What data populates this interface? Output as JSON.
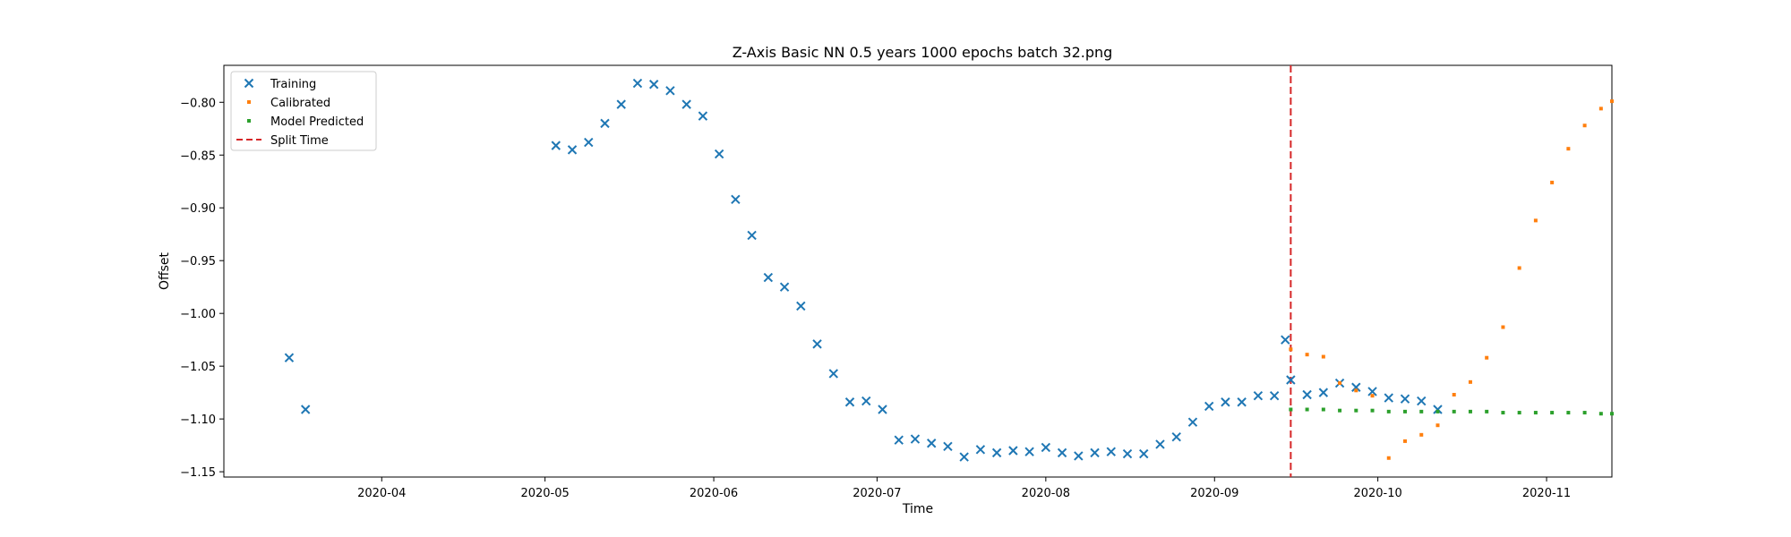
{
  "chart_data": {
    "type": "scatter",
    "title": "Z-Axis Basic NN 0.5 years 1000 epochs batch 32.png",
    "xlabel": "Time",
    "ylabel": "Offset",
    "xlim": [
      "2020-03-03",
      "2020-11-13"
    ],
    "ylim": [
      -1.155,
      -0.765
    ],
    "x_ticks": [
      "2020-04",
      "2020-05",
      "2020-06",
      "2020-07",
      "2020-08",
      "2020-09",
      "2020-10",
      "2020-11"
    ],
    "y_ticks": [
      -0.8,
      -0.85,
      -0.9,
      -0.95,
      -1.0,
      -1.05,
      -1.1,
      -1.15
    ],
    "y_tick_labels": [
      "−0.80",
      "−0.85",
      "−0.90",
      "−0.95",
      "−1.00",
      "−1.05",
      "−1.10",
      "−1.15"
    ],
    "legend_position": "top-left",
    "grid": false,
    "split_time": {
      "name": "Split Time",
      "x": "2020-09-15",
      "color": "#d62728"
    },
    "series": [
      {
        "name": "Training",
        "marker": "x",
        "color": "#1f77b4",
        "points": [
          [
            "2020-03-15",
            -1.042
          ],
          [
            "2020-03-18",
            -1.091
          ],
          [
            "2020-05-03",
            -0.841
          ],
          [
            "2020-05-06",
            -0.845
          ],
          [
            "2020-05-09",
            -0.838
          ],
          [
            "2020-05-12",
            -0.82
          ],
          [
            "2020-05-15",
            -0.802
          ],
          [
            "2020-05-18",
            -0.782
          ],
          [
            "2020-05-21",
            -0.783
          ],
          [
            "2020-05-24",
            -0.789
          ],
          [
            "2020-05-27",
            -0.802
          ],
          [
            "2020-05-30",
            -0.813
          ],
          [
            "2020-06-02",
            -0.849
          ],
          [
            "2020-06-05",
            -0.892
          ],
          [
            "2020-06-08",
            -0.926
          ],
          [
            "2020-06-11",
            -0.966
          ],
          [
            "2020-06-14",
            -0.975
          ],
          [
            "2020-06-17",
            -0.993
          ],
          [
            "2020-06-20",
            -1.029
          ],
          [
            "2020-06-23",
            -1.057
          ],
          [
            "2020-06-26",
            -1.084
          ],
          [
            "2020-06-29",
            -1.083
          ],
          [
            "2020-07-02",
            -1.091
          ],
          [
            "2020-07-05",
            -1.12
          ],
          [
            "2020-07-08",
            -1.119
          ],
          [
            "2020-07-11",
            -1.123
          ],
          [
            "2020-07-14",
            -1.126
          ],
          [
            "2020-07-17",
            -1.136
          ],
          [
            "2020-07-20",
            -1.129
          ],
          [
            "2020-07-23",
            -1.132
          ],
          [
            "2020-07-26",
            -1.13
          ],
          [
            "2020-07-29",
            -1.131
          ],
          [
            "2020-08-01",
            -1.127
          ],
          [
            "2020-08-04",
            -1.132
          ],
          [
            "2020-08-07",
            -1.135
          ],
          [
            "2020-08-10",
            -1.132
          ],
          [
            "2020-08-13",
            -1.131
          ],
          [
            "2020-08-16",
            -1.133
          ],
          [
            "2020-08-19",
            -1.133
          ],
          [
            "2020-08-22",
            -1.124
          ],
          [
            "2020-08-25",
            -1.117
          ],
          [
            "2020-08-28",
            -1.103
          ],
          [
            "2020-08-31",
            -1.088
          ],
          [
            "2020-09-03",
            -1.084
          ],
          [
            "2020-09-06",
            -1.084
          ],
          [
            "2020-09-09",
            -1.078
          ],
          [
            "2020-09-12",
            -1.078
          ],
          [
            "2020-09-15",
            -1.063
          ],
          [
            "2020-09-18",
            -1.077
          ],
          [
            "2020-09-21",
            -1.075
          ],
          [
            "2020-09-24",
            -1.066
          ],
          [
            "2020-09-27",
            -1.07
          ],
          [
            "2020-09-30",
            -1.074
          ],
          [
            "2020-10-03",
            -1.08
          ],
          [
            "2020-10-06",
            -1.081
          ],
          [
            "2020-10-09",
            -1.083
          ],
          [
            "2020-10-12",
            -1.091
          ],
          [
            "2020-09-14",
            -1.025
          ]
        ]
      },
      {
        "name": "Calibrated",
        "marker": "s",
        "color": "#ff7f0e",
        "points": [
          [
            "2020-09-15",
            -1.034
          ],
          [
            "2020-09-18",
            -1.039
          ],
          [
            "2020-09-21",
            -1.041
          ],
          [
            "2020-09-24",
            -1.066
          ],
          [
            "2020-09-27",
            -1.073
          ],
          [
            "2020-09-30",
            -1.078
          ],
          [
            "2020-10-03",
            -1.137
          ],
          [
            "2020-10-06",
            -1.121
          ],
          [
            "2020-10-09",
            -1.115
          ],
          [
            "2020-10-12",
            -1.106
          ],
          [
            "2020-10-15",
            -1.077
          ],
          [
            "2020-10-18",
            -1.065
          ],
          [
            "2020-10-21",
            -1.042
          ],
          [
            "2020-10-24",
            -1.013
          ],
          [
            "2020-10-27",
            -0.957
          ],
          [
            "2020-10-30",
            -0.912
          ],
          [
            "2020-11-02",
            -0.876
          ],
          [
            "2020-11-05",
            -0.844
          ],
          [
            "2020-11-08",
            -0.822
          ],
          [
            "2020-11-11",
            -0.806
          ],
          [
            "2020-11-13",
            -0.799
          ]
        ]
      },
      {
        "name": "Model Predicted",
        "marker": "o",
        "color": "#2ca02c",
        "points": [
          [
            "2020-09-15",
            -1.091
          ],
          [
            "2020-09-18",
            -1.091
          ],
          [
            "2020-09-21",
            -1.091
          ],
          [
            "2020-09-24",
            -1.092
          ],
          [
            "2020-09-27",
            -1.092
          ],
          [
            "2020-09-30",
            -1.092
          ],
          [
            "2020-10-03",
            -1.093
          ],
          [
            "2020-10-06",
            -1.093
          ],
          [
            "2020-10-09",
            -1.093
          ],
          [
            "2020-10-12",
            -1.093
          ],
          [
            "2020-10-15",
            -1.093
          ],
          [
            "2020-10-18",
            -1.093
          ],
          [
            "2020-10-21",
            -1.093
          ],
          [
            "2020-10-24",
            -1.094
          ],
          [
            "2020-10-27",
            -1.094
          ],
          [
            "2020-10-30",
            -1.094
          ],
          [
            "2020-11-02",
            -1.094
          ],
          [
            "2020-11-05",
            -1.094
          ],
          [
            "2020-11-08",
            -1.094
          ],
          [
            "2020-11-11",
            -1.095
          ],
          [
            "2020-11-13",
            -1.095
          ]
        ]
      }
    ]
  }
}
